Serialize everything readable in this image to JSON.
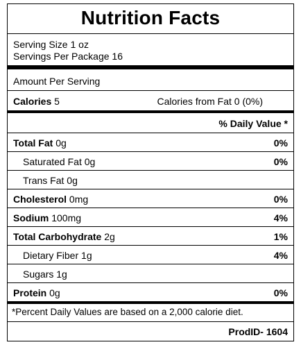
{
  "title": "Nutrition Facts",
  "serving_size": "Serving Size 1 oz",
  "servings_per_package": "Servings Per Package 16",
  "amount_per_serving": "Amount Per Serving",
  "calories": {
    "label": "Calories",
    "value": "5",
    "from_fat": "Calories from Fat 0 (0%)"
  },
  "daily_value_header": "% Daily Value *",
  "nutrients": [
    {
      "label": "Total Fat",
      "amount": "0g",
      "dv": "0%"
    },
    {
      "label": "Saturated Fat",
      "amount": "0g",
      "dv": "0%"
    },
    {
      "label": "Trans Fat",
      "amount": "0g",
      "dv": ""
    },
    {
      "label": "Cholesterol",
      "amount": "0mg",
      "dv": "0%"
    },
    {
      "label": "Sodium",
      "amount": "100mg",
      "dv": "4%"
    },
    {
      "label": "Total Carbohydrate",
      "amount": "2g",
      "dv": "1%"
    },
    {
      "label": "Dietary Fiber",
      "amount": "1g",
      "dv": "4%"
    },
    {
      "label": "Sugars",
      "amount": "1g",
      "dv": ""
    },
    {
      "label": "Protein",
      "amount": "0g",
      "dv": "0%"
    }
  ],
  "footnote": "*Percent Daily Values are based on a 2,000 calorie diet.",
  "prod_id": "ProdID- 1604"
}
